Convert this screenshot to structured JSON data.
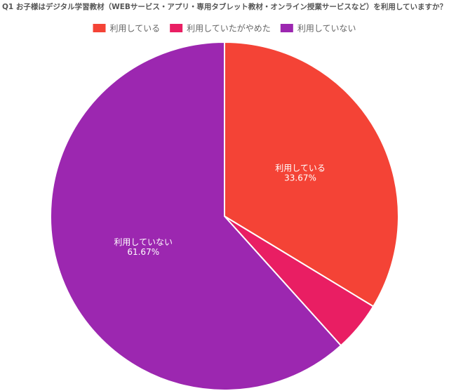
{
  "chart_data": {
    "type": "pie",
    "title": "Q1 お子様はデジタル学習教材（WEBサービス・アプリ・専用タブレット教材・オンライン授業サービスなど）を利用していますか？",
    "categories": [
      "利用している",
      "利用していたがやめた",
      "利用していない"
    ],
    "values": [
      33.67,
      4.66,
      61.67
    ],
    "value_labels": [
      "33.67%",
      null,
      "61.67%"
    ],
    "colors": [
      "#f44336",
      "#e91e63",
      "#9c27b0"
    ],
    "legend": "top"
  }
}
